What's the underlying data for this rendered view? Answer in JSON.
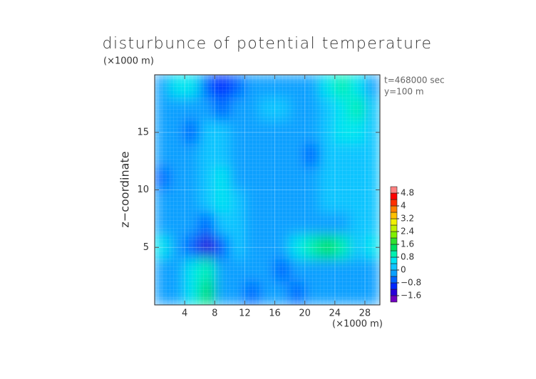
{
  "chart_data": {
    "type": "contour",
    "title": "disturbunce of potential temperature",
    "y_unit": "(×1000 m)",
    "x_unit": "(×1000 m)",
    "y_label": "z−coordinate",
    "annotations": [
      "t=468000 sec",
      "y=100 m"
    ],
    "x": [
      1,
      3,
      5,
      7,
      9,
      11,
      13,
      15,
      17,
      19,
      21,
      23,
      25,
      27,
      29
    ],
    "y": [
      19,
      17,
      15,
      13,
      11,
      9,
      7,
      5,
      3,
      1
    ],
    "z": [
      [
        -0.2,
        0.6,
        0.4,
        -0.8,
        -1.2,
        -0.8,
        -0.4,
        -0.2,
        -0.2,
        -0.2,
        -0.2,
        0.4,
        1.0,
        0.4,
        -0.2
      ],
      [
        -0.4,
        -0.2,
        -0.2,
        -0.4,
        -0.6,
        -0.4,
        -0.2,
        0,
        0,
        -0.2,
        -0.2,
        0.2,
        0.6,
        0.8,
        0.2
      ],
      [
        -0.2,
        -0.2,
        -0.6,
        0,
        0.2,
        -0.2,
        -0.2,
        -0.2,
        -0.2,
        -0.2,
        -0.4,
        0.2,
        0.4,
        0.4,
        0.2
      ],
      [
        -0.4,
        -0.2,
        -0.4,
        0.2,
        0.2,
        -0.2,
        -0.2,
        -0.2,
        -0.2,
        -0.2,
        -0.6,
        0.2,
        0.2,
        0.2,
        0
      ],
      [
        -0.6,
        -0.2,
        -0.4,
        0.2,
        0.4,
        -0.2,
        -0.2,
        -0.2,
        -0.2,
        -0.2,
        -0.4,
        0.2,
        0,
        0.2,
        0
      ],
      [
        -0.4,
        -0.2,
        -0.2,
        0,
        0.4,
        0,
        -0.2,
        -0.2,
        -0.2,
        -0.2,
        -0.2,
        0,
        0,
        0,
        0
      ],
      [
        -0.2,
        -0.2,
        -0.4,
        -0.8,
        0.2,
        0,
        -0.2,
        -0.2,
        -0.2,
        -0.2,
        -0.2,
        -0.2,
        -0.2,
        0,
        0.2
      ],
      [
        0.4,
        -0.2,
        -0.8,
        -1.6,
        -0.6,
        0,
        -0.2,
        -0.4,
        -0.2,
        0.6,
        1.0,
        1.2,
        0.8,
        0,
        0.4
      ],
      [
        -0.2,
        -0.2,
        0.6,
        0.8,
        -0.2,
        -0.2,
        -0.4,
        -0.4,
        -0.6,
        -0.4,
        -0.2,
        -0.2,
        -0.4,
        -0.2,
        -0.2
      ],
      [
        -0.2,
        -0.4,
        0.4,
        1.2,
        -0.2,
        -0.4,
        -0.6,
        -0.4,
        -0.4,
        -0.6,
        -0.4,
        -0.2,
        -0.2,
        -0.4,
        -0.4
      ]
    ],
    "xlim": [
      0,
      30
    ],
    "ylim": [
      0,
      20
    ],
    "xticks": [
      4,
      8,
      12,
      16,
      20,
      24,
      28
    ],
    "yticks": [
      5,
      10,
      15
    ],
    "grid": true,
    "colorbar": {
      "levels": [
        -2.0,
        -1.6,
        -1.2,
        -0.8,
        -0.4,
        0,
        0.4,
        0.8,
        1.2,
        1.6,
        2.0,
        2.4,
        2.8,
        3.2,
        3.6,
        4.0,
        4.4,
        4.8,
        5.2
      ],
      "colors": [
        "#7000c0",
        "#2a00d8",
        "#0028ff",
        "#0064ff",
        "#0aa0ff",
        "#10c4ff",
        "#00e4f0",
        "#00f0b0",
        "#00e060",
        "#30e030",
        "#80f000",
        "#c0f000",
        "#f0f000",
        "#ffc000",
        "#ff8000",
        "#ff3000",
        "#ff0000",
        "#ff8080"
      ],
      "ticks": [
        {
          "value": -1.6,
          "label": "−1.6"
        },
        {
          "value": -0.8,
          "label": "−0.8"
        },
        0,
        0.8,
        1.6,
        2.4,
        3.2,
        4,
        4.8
      ]
    }
  }
}
